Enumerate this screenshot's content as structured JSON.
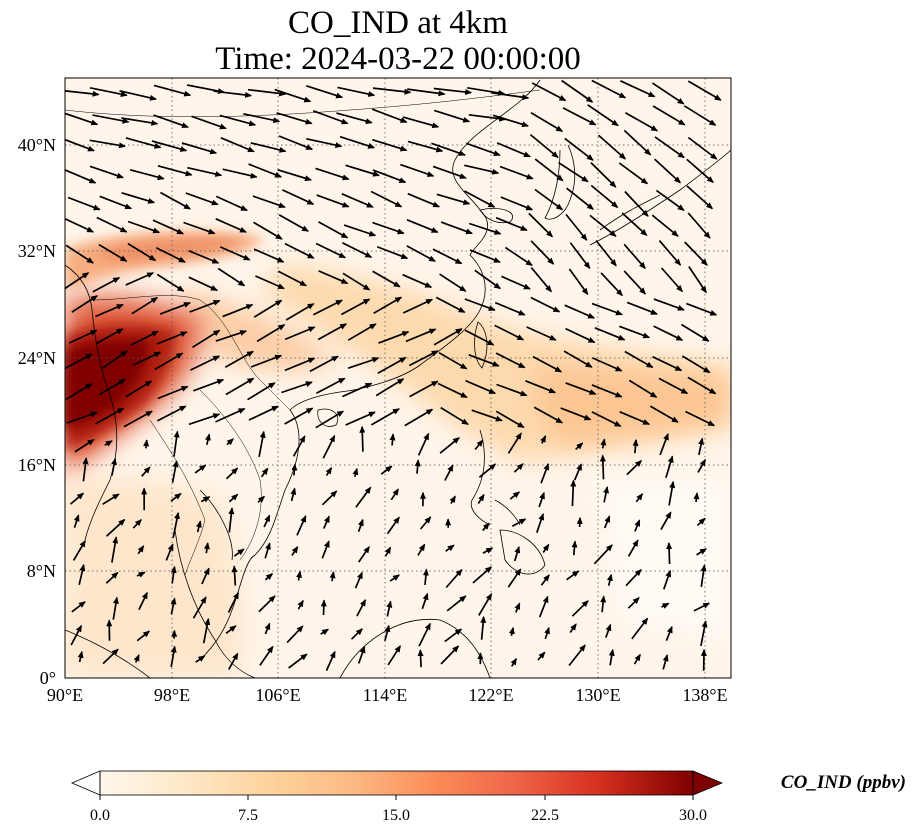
{
  "title": {
    "line1": "CO_IND at 4km",
    "line2": "Time: 2024-03-22 00:00:00"
  },
  "map": {
    "projection": "PlateCarree",
    "lon_range": [
      90,
      140
    ],
    "lat_range": [
      0,
      45
    ],
    "gridlines": "dotted",
    "coastlines": true,
    "country_borders": true,
    "x_ticks": [
      "90°E",
      "98°E",
      "106°E",
      "114°E",
      "122°E",
      "130°E",
      "138°E"
    ],
    "y_ticks": [
      "0°",
      "8°N",
      "16°N",
      "24°N",
      "32°N",
      "40°N"
    ],
    "field": {
      "name": "CO_IND",
      "units": "ppbv",
      "colormap": "OrRd",
      "range": [
        0,
        30
      ],
      "features": [
        {
          "description": "high CO over northern Indochina / Myanmar-Yunnan",
          "lon": [
            90,
            98
          ],
          "lat": [
            18,
            28
          ],
          "peak_ppbv": 30
        },
        {
          "description": "plume band toward east",
          "lon": [
            98,
            140
          ],
          "lat": [
            16,
            32
          ],
          "value_ppbv": 8
        }
      ]
    },
    "wind_vectors": {
      "style": "black arrows",
      "dominant_direction": "westerly to northwesterly in north, southwesterly in south"
    }
  },
  "colorbar": {
    "ticks": [
      "0.0",
      "7.5",
      "15.0",
      "22.5",
      "30.0"
    ],
    "label": "CO_IND (ppbv)",
    "extend": "both",
    "colors": [
      "#fff7ec",
      "#fdd49e",
      "#fdbb84",
      "#fc8d59",
      "#ef6548",
      "#d7301f",
      "#b30000",
      "#7f0000"
    ]
  }
}
